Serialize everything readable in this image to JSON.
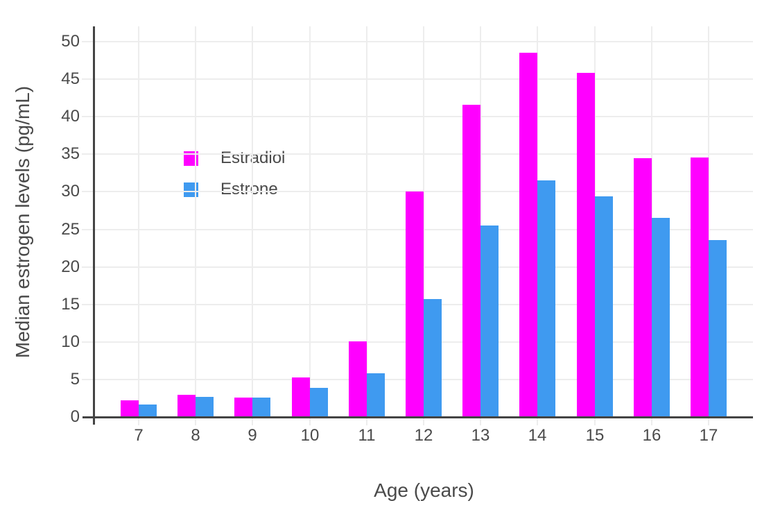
{
  "figure": {
    "background_color": "#ffffff",
    "text_color": "#4a4a4a",
    "grid_color": "#ededed",
    "axis_line_color": "#444444"
  },
  "chart_data": {
    "type": "bar",
    "title": "",
    "xlabel": "Age (years)",
    "ylabel": "Median estrogen levels (pg/mL)",
    "categories": [
      "7",
      "8",
      "9",
      "10",
      "11",
      "12",
      "13",
      "14",
      "15",
      "16",
      "17"
    ],
    "series": [
      {
        "name": "Estradiol",
        "color": "#ff00ff",
        "values": [
          2.2,
          3.0,
          2.6,
          5.3,
          10.1,
          30.0,
          41.6,
          48.5,
          45.8,
          34.5,
          34.6
        ]
      },
      {
        "name": "Estrone",
        "color": "#3f9af0",
        "values": [
          1.7,
          2.7,
          2.6,
          3.9,
          5.8,
          15.7,
          25.5,
          31.5,
          29.4,
          26.5,
          23.6
        ]
      }
    ],
    "ylim": [
      0,
      52
    ],
    "yticks": [
      0,
      5,
      10,
      15,
      20,
      25,
      30,
      35,
      40,
      45,
      50
    ],
    "grid": true,
    "legend_position": "inside-upper-left",
    "bar_mode": "grouped"
  }
}
